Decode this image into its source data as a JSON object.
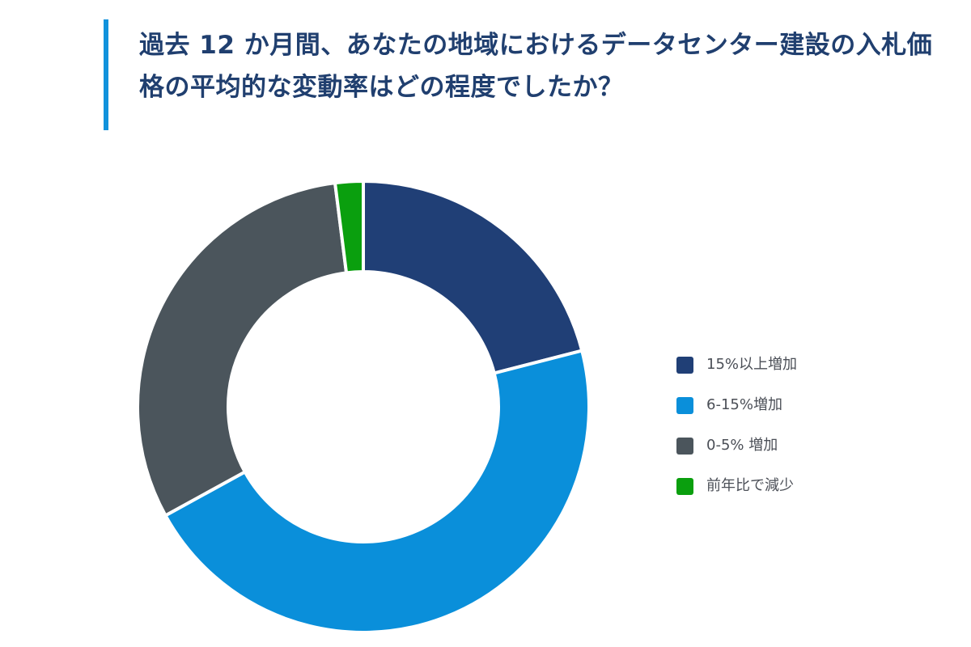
{
  "header": {
    "title": "過去 12 か月間、あなたの地域におけるデータセンター建設の入札価格の平均的な変動率はどの程度でしたか？"
  },
  "chart_data": {
    "type": "pie",
    "title": "過去 12 か月間、あなたの地域におけるデータセンター建設の入札価格の平均的な変動率はどの程度でしたか？",
    "legend_position": "right",
    "series": [
      {
        "categories": [
          "15%以上増加",
          "6-15%増加",
          "0-5% 増加",
          "前年比で減少"
        ],
        "values": [
          21,
          46,
          31,
          2
        ]
      }
    ],
    "colors": [
      "#203f76",
      "#0a8fda",
      "#4b555c",
      "#0a9f0e"
    ]
  }
}
